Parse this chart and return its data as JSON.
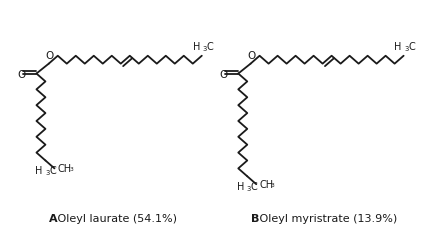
{
  "bg_color": "#ffffff",
  "line_color": "#1a1a1a",
  "lw": 1.3,
  "bdx": 9.5,
  "bdy": 8.0,
  "label_A": "A",
  "label_B": "B",
  "caption_A": " Oleyl laurate (54.1%)",
  "caption_B": " Oleyl myristrate (13.9%)",
  "caption_fs": 8.0,
  "chem_fs": 7.0
}
